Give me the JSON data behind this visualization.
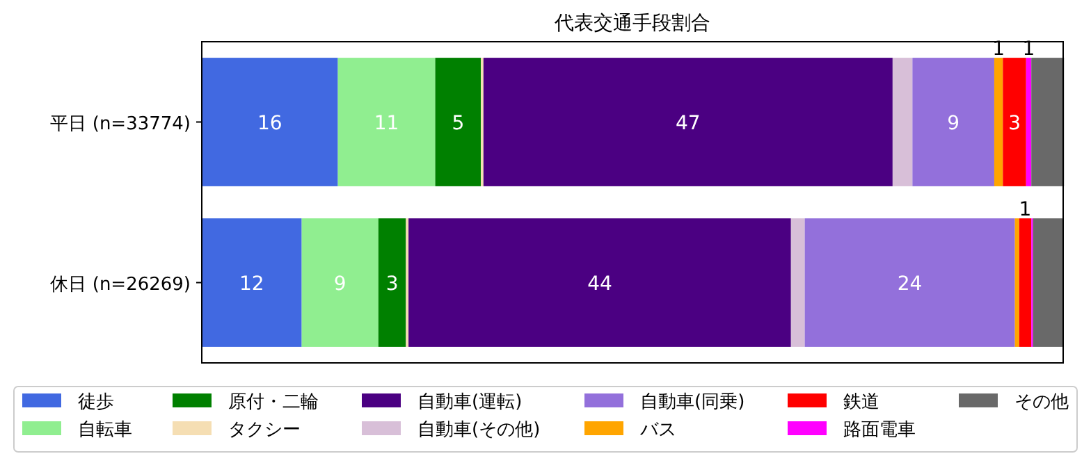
{
  "chart_data": {
    "type": "bar",
    "title": "代表交通手段割合",
    "orientation": "horizontal",
    "stacked": true,
    "categories": [
      "平日 (n=33774)",
      "休日 (n=26269)"
    ],
    "xlim": [
      0,
      100
    ],
    "tick_labels": "y",
    "legend": "bottom",
    "series": [
      {
        "name": "徒歩",
        "color": "#4169e1",
        "values": [
          15.8,
          11.6
        ],
        "value_labels": [
          "16",
          "12"
        ]
      },
      {
        "name": "自転車",
        "color": "#90ee90",
        "values": [
          11.3,
          8.9
        ],
        "value_labels": [
          "11",
          "9"
        ]
      },
      {
        "name": "原付・二輪",
        "color": "#008000",
        "values": [
          5.3,
          3.2
        ],
        "value_labels": [
          "5",
          "3"
        ]
      },
      {
        "name": "タクシー",
        "color": "#f5deb3",
        "values": [
          0.3,
          0.3
        ],
        "value_labels": [
          null,
          null
        ]
      },
      {
        "name": "自動車(運転)",
        "color": "#4b0082",
        "values": [
          47.5,
          44.4
        ],
        "value_labels": [
          "47",
          "44"
        ]
      },
      {
        "name": "自動車(その他)",
        "color": "#d8bfd8",
        "values": [
          2.3,
          1.6
        ],
        "value_labels": [
          null,
          null
        ]
      },
      {
        "name": "自動車(同乗)",
        "color": "#9370db",
        "values": [
          9.5,
          24.4
        ],
        "value_labels": [
          "9",
          "24"
        ]
      },
      {
        "name": "バス",
        "color": "#ffa500",
        "values": [
          1.0,
          0.5
        ],
        "value_labels": [
          "1",
          null
        ]
      },
      {
        "name": "鉄道",
        "color": "#ff0000",
        "values": [
          2.7,
          1.4
        ],
        "value_labels": [
          "3",
          "1"
        ]
      },
      {
        "name": "路面電車",
        "color": "#ff00ff",
        "values": [
          0.6,
          0.2
        ],
        "value_labels": [
          "1",
          null
        ]
      },
      {
        "name": "その他",
        "color": "#696969",
        "values": [
          3.8,
          3.5
        ],
        "value_labels": [
          null,
          null
        ]
      }
    ]
  }
}
